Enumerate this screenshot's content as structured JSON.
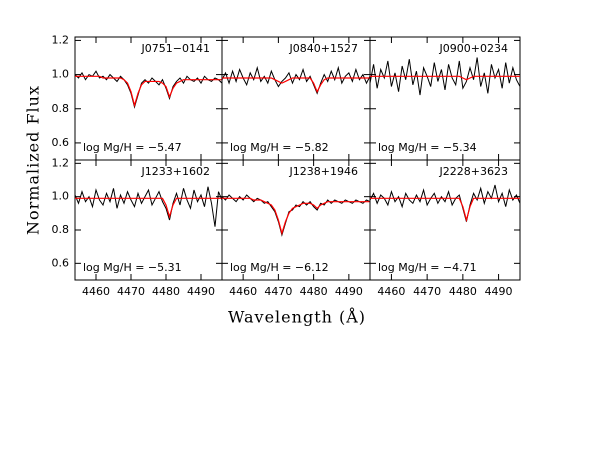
{
  "xlabel": "Wavelength (Å)",
  "ylabel": "Normalized Flux",
  "chart_data": [
    {
      "type": "line",
      "title": "J0751−0141",
      "annotation": "log Mg/H = −5.47",
      "x": [
        4454,
        4455,
        4456,
        4457,
        4458,
        4459,
        4460,
        4461,
        4462,
        4463,
        4464,
        4465,
        4466,
        4467,
        4468,
        4469,
        4470,
        4471,
        4472,
        4473,
        4474,
        4475,
        4476,
        4477,
        4478,
        4479,
        4480,
        4481,
        4482,
        4483,
        4484,
        4485,
        4486,
        4487,
        4488,
        4489,
        4490,
        4491,
        4492,
        4493,
        4494,
        4495,
        4496
      ],
      "xlim": [
        4454,
        4496
      ],
      "ylim": [
        0.5,
        1.22
      ],
      "xticks": [
        4460,
        4470,
        4480,
        4490
      ],
      "yticks": [
        0.6,
        0.8,
        {
          "value": 1,
          "label": "1.0"
        },
        1.2
      ],
      "series": [
        {
          "color": "#000000",
          "values": [
            1.0,
            0.98,
            1.01,
            0.97,
            1.0,
            0.99,
            1.02,
            0.98,
            0.99,
            0.97,
            1.0,
            0.98,
            0.96,
            0.99,
            0.97,
            0.94,
            0.89,
            0.81,
            0.88,
            0.95,
            0.97,
            0.95,
            0.98,
            0.96,
            0.94,
            0.97,
            0.92,
            0.86,
            0.93,
            0.96,
            0.98,
            0.95,
            0.99,
            0.97,
            0.96,
            0.98,
            0.95,
            0.99,
            0.97,
            0.96,
            0.98,
            0.97,
            0.95
          ]
        },
        {
          "color": "#ff0000",
          "values": [
            0.99,
            0.99,
            0.99,
            0.99,
            0.99,
            0.99,
            0.99,
            0.99,
            0.98,
            0.98,
            0.98,
            0.98,
            0.98,
            0.98,
            0.97,
            0.95,
            0.9,
            0.82,
            0.89,
            0.94,
            0.96,
            0.96,
            0.96,
            0.96,
            0.96,
            0.95,
            0.93,
            0.87,
            0.92,
            0.95,
            0.96,
            0.97,
            0.97,
            0.97,
            0.97,
            0.97,
            0.97,
            0.97,
            0.97,
            0.97,
            0.97,
            0.97,
            0.97
          ]
        }
      ]
    },
    {
      "type": "line",
      "title": "J0840+1527",
      "annotation": "log Mg/H = −5.82",
      "x": [
        4454,
        4455,
        4456,
        4457,
        4458,
        4459,
        4460,
        4461,
        4462,
        4463,
        4464,
        4465,
        4466,
        4467,
        4468,
        4469,
        4470,
        4471,
        4472,
        4473,
        4474,
        4475,
        4476,
        4477,
        4478,
        4479,
        4480,
        4481,
        4482,
        4483,
        4484,
        4485,
        4486,
        4487,
        4488,
        4489,
        4490,
        4491,
        4492,
        4493,
        4494,
        4495,
        4496
      ],
      "xlim": [
        4454,
        4496
      ],
      "ylim": [
        0.5,
        1.22
      ],
      "xticks": [
        4460,
        4470,
        4480,
        4490
      ],
      "yticks": [
        0.6,
        0.8,
        {
          "value": 1,
          "label": "1.0"
        },
        1.2
      ],
      "series": [
        {
          "color": "#000000",
          "values": [
            0.97,
            1.01,
            0.95,
            1.02,
            0.96,
            1.03,
            0.98,
            0.94,
            1.01,
            0.97,
            1.04,
            0.96,
            0.99,
            0.95,
            1.02,
            0.97,
            0.93,
            0.96,
            0.98,
            1.01,
            0.95,
            1.0,
            0.97,
            1.03,
            0.96,
            0.99,
            0.94,
            0.89,
            0.95,
            1.0,
            0.96,
            1.02,
            0.97,
            1.04,
            0.95,
            0.99,
            1.01,
            0.96,
            1.03,
            0.97,
            1.0,
            0.95,
            0.99
          ]
        },
        {
          "color": "#ff0000",
          "values": [
            0.98,
            0.98,
            0.98,
            0.98,
            0.98,
            0.98,
            0.98,
            0.98,
            0.98,
            0.98,
            0.98,
            0.98,
            0.98,
            0.98,
            0.98,
            0.97,
            0.96,
            0.95,
            0.96,
            0.97,
            0.98,
            0.98,
            0.98,
            0.98,
            0.98,
            0.98,
            0.95,
            0.9,
            0.94,
            0.97,
            0.98,
            0.98,
            0.98,
            0.98,
            0.98,
            0.98,
            0.98,
            0.98,
            0.98,
            0.98,
            0.98,
            0.98,
            0.98
          ]
        }
      ]
    },
    {
      "type": "line",
      "title": "J0900+0234",
      "annotation": "log Mg/H = −5.34",
      "x": [
        4454,
        4455,
        4456,
        4457,
        4458,
        4459,
        4460,
        4461,
        4462,
        4463,
        4464,
        4465,
        4466,
        4467,
        4468,
        4469,
        4470,
        4471,
        4472,
        4473,
        4474,
        4475,
        4476,
        4477,
        4478,
        4479,
        4480,
        4481,
        4482,
        4483,
        4484,
        4485,
        4486,
        4487,
        4488,
        4489,
        4490,
        4491,
        4492,
        4493,
        4494,
        4495,
        4496
      ],
      "xlim": [
        4454,
        4496
      ],
      "ylim": [
        0.5,
        1.22
      ],
      "xticks": [
        4460,
        4470,
        4480,
        4490
      ],
      "yticks": [
        0.6,
        0.8,
        {
          "value": 1,
          "label": "1.0"
        },
        1.2
      ],
      "series": [
        {
          "color": "#000000",
          "values": [
            0.95,
            1.06,
            0.92,
            1.03,
            0.98,
            1.08,
            0.93,
            1.01,
            0.9,
            1.05,
            0.97,
            1.09,
            0.94,
            1.02,
            0.88,
            1.04,
            0.99,
            0.93,
            1.07,
            0.96,
            1.03,
            0.91,
            1.06,
            0.98,
            0.94,
            1.08,
            0.92,
            0.96,
            1.04,
            0.97,
            1.1,
            0.93,
            1.01,
            0.89,
            1.06,
            0.98,
            1.03,
            0.92,
            1.07,
            0.95,
            1.04,
            0.97,
            0.93
          ]
        },
        {
          "color": "#ff0000",
          "values": [
            0.99,
            0.99,
            0.99,
            0.99,
            0.99,
            0.99,
            0.99,
            0.99,
            0.99,
            0.99,
            0.99,
            0.99,
            0.99,
            0.99,
            0.99,
            0.99,
            0.99,
            0.99,
            0.99,
            0.99,
            0.99,
            0.99,
            0.99,
            0.99,
            0.99,
            0.99,
            0.98,
            0.97,
            0.98,
            0.99,
            0.99,
            0.99,
            0.99,
            0.99,
            0.99,
            0.99,
            0.99,
            0.99,
            0.99,
            0.99,
            0.99,
            0.99,
            0.99
          ]
        }
      ]
    },
    {
      "type": "line",
      "title": "J1233+1602",
      "annotation": "log Mg/H = −5.31",
      "x": [
        4454,
        4455,
        4456,
        4457,
        4458,
        4459,
        4460,
        4461,
        4462,
        4463,
        4464,
        4465,
        4466,
        4467,
        4468,
        4469,
        4470,
        4471,
        4472,
        4473,
        4474,
        4475,
        4476,
        4477,
        4478,
        4479,
        4480,
        4481,
        4482,
        4483,
        4484,
        4485,
        4486,
        4487,
        4488,
        4489,
        4490,
        4491,
        4492,
        4493,
        4494,
        4495,
        4496
      ],
      "xlim": [
        4454,
        4496
      ],
      "ylim": [
        0.5,
        1.22
      ],
      "xticks": [
        4460,
        4470,
        4480,
        4490
      ],
      "yticks": [
        0.6,
        0.8,
        {
          "value": 1,
          "label": "1.0"
        },
        1.2
      ],
      "series": [
        {
          "color": "#000000",
          "values": [
            1.01,
            0.96,
            1.03,
            0.97,
            1.0,
            0.94,
            1.04,
            0.98,
            0.95,
            1.02,
            0.97,
            1.05,
            0.93,
            1.01,
            0.96,
            1.03,
            0.98,
            0.94,
            1.02,
            0.96,
            1.0,
            1.04,
            0.95,
            0.99,
            1.03,
            0.97,
            0.93,
            0.86,
            0.96,
            1.02,
            0.95,
            1.05,
            0.98,
            0.93,
            1.04,
            0.97,
            1.01,
            0.94,
            1.06,
            0.96,
            0.82,
            1.03,
            0.98
          ]
        },
        {
          "color": "#ff0000",
          "values": [
            0.99,
            0.99,
            0.99,
            0.99,
            0.99,
            0.99,
            0.99,
            0.99,
            0.99,
            0.99,
            0.99,
            0.99,
            0.99,
            0.99,
            0.99,
            0.99,
            0.99,
            0.99,
            0.99,
            0.99,
            0.99,
            0.99,
            0.99,
            0.99,
            0.99,
            0.99,
            0.95,
            0.88,
            0.95,
            0.99,
            0.99,
            0.99,
            0.99,
            0.99,
            0.99,
            0.99,
            0.99,
            0.99,
            0.99,
            0.99,
            0.99,
            0.99,
            0.99
          ]
        }
      ]
    },
    {
      "type": "line",
      "title": "J1238+1946",
      "annotation": "log Mg/H = −6.12",
      "x": [
        4454,
        4455,
        4456,
        4457,
        4458,
        4459,
        4460,
        4461,
        4462,
        4463,
        4464,
        4465,
        4466,
        4467,
        4468,
        4469,
        4470,
        4471,
        4472,
        4473,
        4474,
        4475,
        4476,
        4477,
        4478,
        4479,
        4480,
        4481,
        4482,
        4483,
        4484,
        4485,
        4486,
        4487,
        4488,
        4489,
        4490,
        4491,
        4492,
        4493,
        4494,
        4495,
        4496
      ],
      "xlim": [
        4454,
        4496
      ],
      "ylim": [
        0.5,
        1.22
      ],
      "xticks": [
        4460,
        4470,
        4480,
        4490
      ],
      "yticks": [
        0.6,
        0.8,
        {
          "value": 1,
          "label": "1.0"
        },
        1.2
      ],
      "series": [
        {
          "color": "#000000",
          "values": [
            1.0,
            0.98,
            1.01,
            0.99,
            0.97,
            1.0,
            0.98,
            1.01,
            0.99,
            0.97,
            0.99,
            0.98,
            0.96,
            0.97,
            0.94,
            0.91,
            0.85,
            0.77,
            0.84,
            0.91,
            0.92,
            0.95,
            0.94,
            0.97,
            0.95,
            0.97,
            0.94,
            0.92,
            0.96,
            0.95,
            0.98,
            0.96,
            0.98,
            0.97,
            0.96,
            0.98,
            0.97,
            0.96,
            0.98,
            0.97,
            0.96,
            0.98,
            0.97
          ]
        },
        {
          "color": "#ff0000",
          "values": [
            0.99,
            0.99,
            0.99,
            0.99,
            0.99,
            0.99,
            0.99,
            0.99,
            0.99,
            0.98,
            0.98,
            0.98,
            0.97,
            0.96,
            0.95,
            0.92,
            0.86,
            0.78,
            0.85,
            0.9,
            0.93,
            0.94,
            0.95,
            0.96,
            0.96,
            0.96,
            0.95,
            0.93,
            0.95,
            0.96,
            0.97,
            0.97,
            0.97,
            0.97,
            0.97,
            0.97,
            0.97,
            0.97,
            0.97,
            0.97,
            0.97,
            0.97,
            0.97
          ]
        }
      ]
    },
    {
      "type": "line",
      "title": "J2228+3623",
      "annotation": "log Mg/H = −4.71",
      "x": [
        4454,
        4455,
        4456,
        4457,
        4458,
        4459,
        4460,
        4461,
        4462,
        4463,
        4464,
        4465,
        4466,
        4467,
        4468,
        4469,
        4470,
        4471,
        4472,
        4473,
        4474,
        4475,
        4476,
        4477,
        4478,
        4479,
        4480,
        4481,
        4482,
        4483,
        4484,
        4485,
        4486,
        4487,
        4488,
        4489,
        4490,
        4491,
        4492,
        4493,
        4494,
        4495,
        4496
      ],
      "xlim": [
        4454,
        4496
      ],
      "ylim": [
        0.5,
        1.22
      ],
      "xticks": [
        4460,
        4470,
        4480,
        4490
      ],
      "yticks": [
        0.6,
        0.8,
        {
          "value": 1,
          "label": "1.0"
        },
        1.2
      ],
      "series": [
        {
          "color": "#000000",
          "values": [
            0.98,
            1.02,
            0.96,
            1.01,
            0.99,
            0.95,
            1.03,
            0.97,
            1.0,
            0.94,
            1.02,
            0.98,
            0.96,
            1.01,
            0.97,
            1.04,
            0.95,
            0.99,
            1.02,
            0.96,
            1.0,
            0.97,
            1.03,
            0.95,
            0.99,
            1.01,
            0.93,
            0.85,
            0.95,
            1.02,
            0.98,
            1.05,
            0.96,
            1.03,
            0.99,
            1.07,
            0.97,
            1.02,
            0.94,
            1.04,
            0.98,
            1.01,
            0.96
          ]
        },
        {
          "color": "#ff0000",
          "values": [
            0.99,
            0.99,
            0.99,
            0.99,
            0.99,
            0.99,
            0.99,
            0.99,
            0.99,
            0.99,
            0.99,
            0.99,
            0.99,
            0.99,
            0.99,
            0.99,
            0.99,
            0.99,
            0.99,
            0.99,
            0.99,
            0.99,
            0.99,
            0.99,
            0.99,
            0.99,
            0.94,
            0.86,
            0.94,
            0.99,
            0.99,
            0.99,
            0.99,
            0.99,
            0.99,
            0.99,
            0.99,
            0.99,
            0.99,
            0.99,
            0.99,
            0.99,
            0.99
          ]
        }
      ]
    }
  ]
}
